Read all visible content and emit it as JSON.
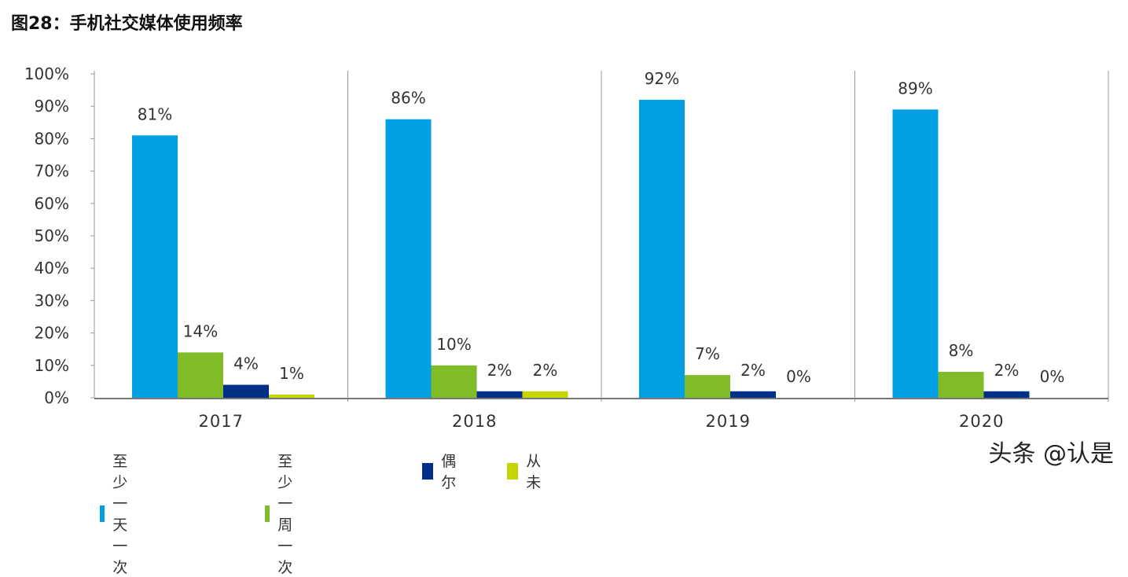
{
  "title": "图28：手机社交媒体使用频率",
  "watermark": "头条 @认是",
  "chart_data": {
    "type": "bar",
    "title": "图28：手机社交媒体使用频率",
    "categories": [
      "2017",
      "2018",
      "2019",
      "2020"
    ],
    "series": [
      {
        "name": "至少一天一次",
        "color": "#00a0e2",
        "values": [
          81,
          86,
          92,
          89
        ]
      },
      {
        "name": "至少一周一次",
        "color": "#7fbc28",
        "values": [
          14,
          10,
          7,
          8
        ]
      },
      {
        "name": "偶尔",
        "color": "#002f87",
        "values": [
          4,
          2,
          2,
          2
        ]
      },
      {
        "name": "从未",
        "color": "#c6d500",
        "values": [
          1,
          2,
          0,
          0
        ]
      }
    ],
    "ylim": [
      0,
      100
    ],
    "yticks": [
      "0%",
      "10%",
      "20%",
      "30%",
      "40%",
      "50%",
      "60%",
      "70%",
      "80%",
      "90%",
      "100%"
    ],
    "value_suffix": "%",
    "grid": false,
    "legend": "bottom-left"
  }
}
